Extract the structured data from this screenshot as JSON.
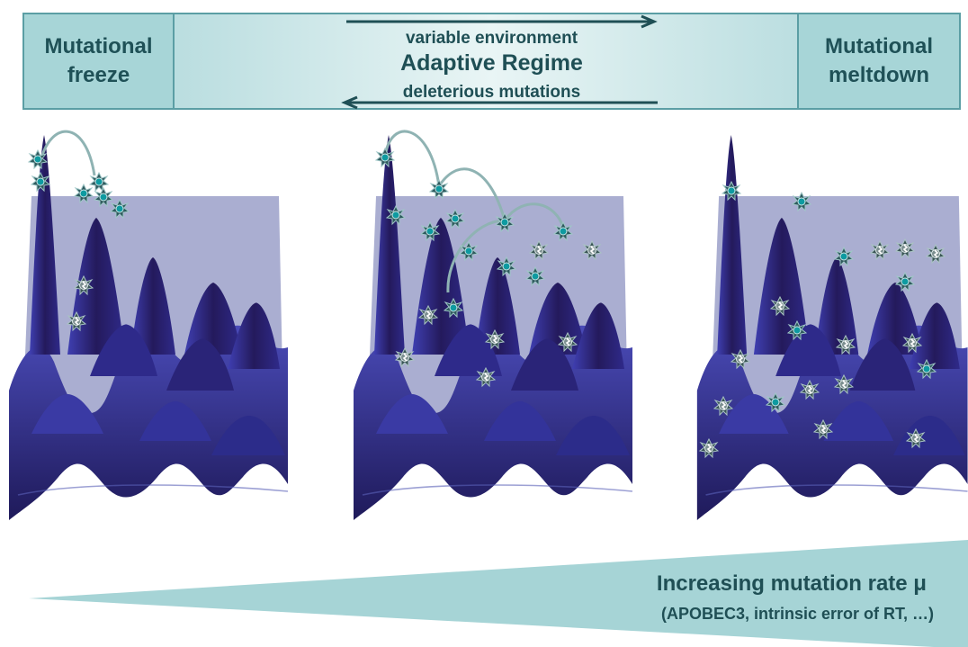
{
  "banner": {
    "left_label": "Mutational\nfreeze",
    "right_label": "Mutational\nmeltdown",
    "top_text": "variable environment",
    "main_text": "Adaptive Regime",
    "bottom_text": "deleterious mutations"
  },
  "rate": {
    "title": "Increasing mutation rate μ",
    "subtitle": "(APOBEC3, intrinsic error of RT, …)"
  },
  "icons": {
    "virus": "virus-icon",
    "defective": "defective-virus-icon",
    "arrow_right": "arrow-right-icon",
    "arrow_left": "arrow-left-icon"
  },
  "colors": {
    "banner_accent": "#a7d5d7",
    "banner_border": "#5b9ea4",
    "landscape_dark": "#241a5c",
    "landscape_mid": "#3b3aa8",
    "plane": "#8e93c2",
    "trajectory": "#8fb3b3",
    "text": "#1f4f55"
  }
}
